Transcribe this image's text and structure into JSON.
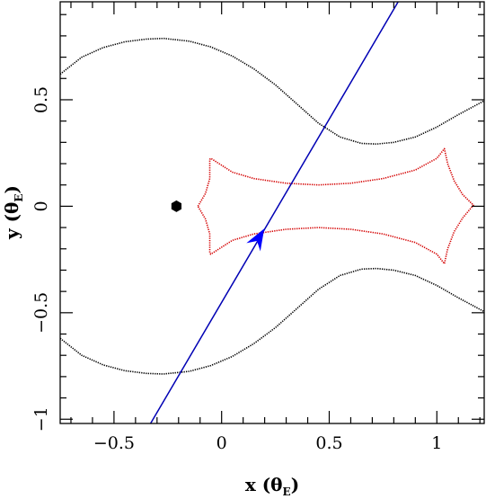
{
  "chart_data": {
    "type": "line",
    "xlim": [
      -0.75,
      1.22
    ],
    "ylim": [
      -1.02,
      0.96
    ],
    "grid": false,
    "x_ticks": [
      -0.5,
      0,
      0.5,
      1
    ],
    "y_ticks": [
      -1,
      -0.5,
      0,
      0.5
    ],
    "x_tick_labels": [
      "−0.5",
      "0",
      "0.5",
      "1"
    ],
    "y_tick_labels": [
      "−1",
      "−0.5",
      "0",
      "0.5"
    ],
    "xlabel": "x (θE)",
    "ylabel": "y (θE)",
    "xlabel_parts": {
      "main": "x (θ",
      "sub": "E",
      "close": ")"
    },
    "ylabel_parts": {
      "main": "y (θ",
      "sub": "E",
      "close": ")"
    },
    "series": [
      {
        "kind": "critical-curve-upper",
        "color": "#000000",
        "style": "dotted",
        "points": [
          [
            -0.75,
            0.62
          ],
          [
            -0.65,
            0.7
          ],
          [
            -0.55,
            0.745
          ],
          [
            -0.45,
            0.772
          ],
          [
            -0.35,
            0.785
          ],
          [
            -0.27,
            0.788
          ],
          [
            -0.15,
            0.775
          ],
          [
            -0.05,
            0.748
          ],
          [
            0.05,
            0.705
          ],
          [
            0.15,
            0.645
          ],
          [
            0.25,
            0.57
          ],
          [
            0.35,
            0.48
          ],
          [
            0.45,
            0.39
          ],
          [
            0.55,
            0.325
          ],
          [
            0.65,
            0.295
          ],
          [
            0.72,
            0.292
          ],
          [
            0.8,
            0.3
          ],
          [
            0.9,
            0.325
          ],
          [
            1.0,
            0.372
          ],
          [
            1.1,
            0.43
          ],
          [
            1.22,
            0.495
          ]
        ]
      },
      {
        "kind": "critical-curve-lower",
        "color": "#000000",
        "style": "dotted",
        "points": [
          [
            -0.75,
            -0.62
          ],
          [
            -0.65,
            -0.7
          ],
          [
            -0.55,
            -0.745
          ],
          [
            -0.45,
            -0.772
          ],
          [
            -0.35,
            -0.785
          ],
          [
            -0.27,
            -0.788
          ],
          [
            -0.15,
            -0.775
          ],
          [
            -0.05,
            -0.748
          ],
          [
            0.05,
            -0.705
          ],
          [
            0.15,
            -0.645
          ],
          [
            0.25,
            -0.57
          ],
          [
            0.35,
            -0.48
          ],
          [
            0.45,
            -0.39
          ],
          [
            0.55,
            -0.325
          ],
          [
            0.65,
            -0.295
          ],
          [
            0.72,
            -0.292
          ],
          [
            0.8,
            -0.3
          ],
          [
            0.9,
            -0.325
          ],
          [
            1.0,
            -0.372
          ],
          [
            1.1,
            -0.43
          ],
          [
            1.22,
            -0.495
          ]
        ]
      },
      {
        "kind": "caustic",
        "color": "#d40000",
        "style": "dotted",
        "points": [
          [
            -0.11,
            0
          ],
          [
            -0.075,
            0.06
          ],
          [
            -0.055,
            0.13
          ],
          [
            -0.055,
            0.22
          ],
          [
            -0.05,
            0.225
          ],
          [
            0.05,
            0.16
          ],
          [
            0.15,
            0.13
          ],
          [
            0.3,
            0.108
          ],
          [
            0.45,
            0.1
          ],
          [
            0.6,
            0.108
          ],
          [
            0.75,
            0.13
          ],
          [
            0.9,
            0.17
          ],
          [
            1.0,
            0.225
          ],
          [
            1.035,
            0.27
          ],
          [
            1.05,
            0.2
          ],
          [
            1.08,
            0.12
          ],
          [
            1.12,
            0.055
          ],
          [
            1.17,
            0.005
          ],
          [
            1.12,
            -0.055
          ],
          [
            1.08,
            -0.12
          ],
          [
            1.05,
            -0.2
          ],
          [
            1.035,
            -0.27
          ],
          [
            1.0,
            -0.225
          ],
          [
            0.9,
            -0.17
          ],
          [
            0.75,
            -0.13
          ],
          [
            0.6,
            -0.108
          ],
          [
            0.45,
            -0.1
          ],
          [
            0.3,
            -0.108
          ],
          [
            0.15,
            -0.13
          ],
          [
            0.05,
            -0.16
          ],
          [
            -0.05,
            -0.225
          ],
          [
            -0.055,
            -0.22
          ],
          [
            -0.055,
            -0.13
          ],
          [
            -0.075,
            -0.06
          ],
          [
            -0.11,
            0
          ]
        ]
      },
      {
        "kind": "source-trajectory",
        "color": "#0000b4",
        "style": "solid",
        "points": [
          [
            -0.33,
            -1.02
          ],
          [
            0.82,
            0.96
          ]
        ]
      }
    ],
    "markers": [
      {
        "kind": "lens",
        "shape": "hexagon",
        "color": "#000000",
        "x": -0.21,
        "y": 0.0
      },
      {
        "kind": "direction-arrow",
        "shape": "arrowhead",
        "color": "#0000ff",
        "x": 0.175,
        "y": -0.145,
        "direction": [
          0.503,
          0.864
        ]
      }
    ]
  }
}
